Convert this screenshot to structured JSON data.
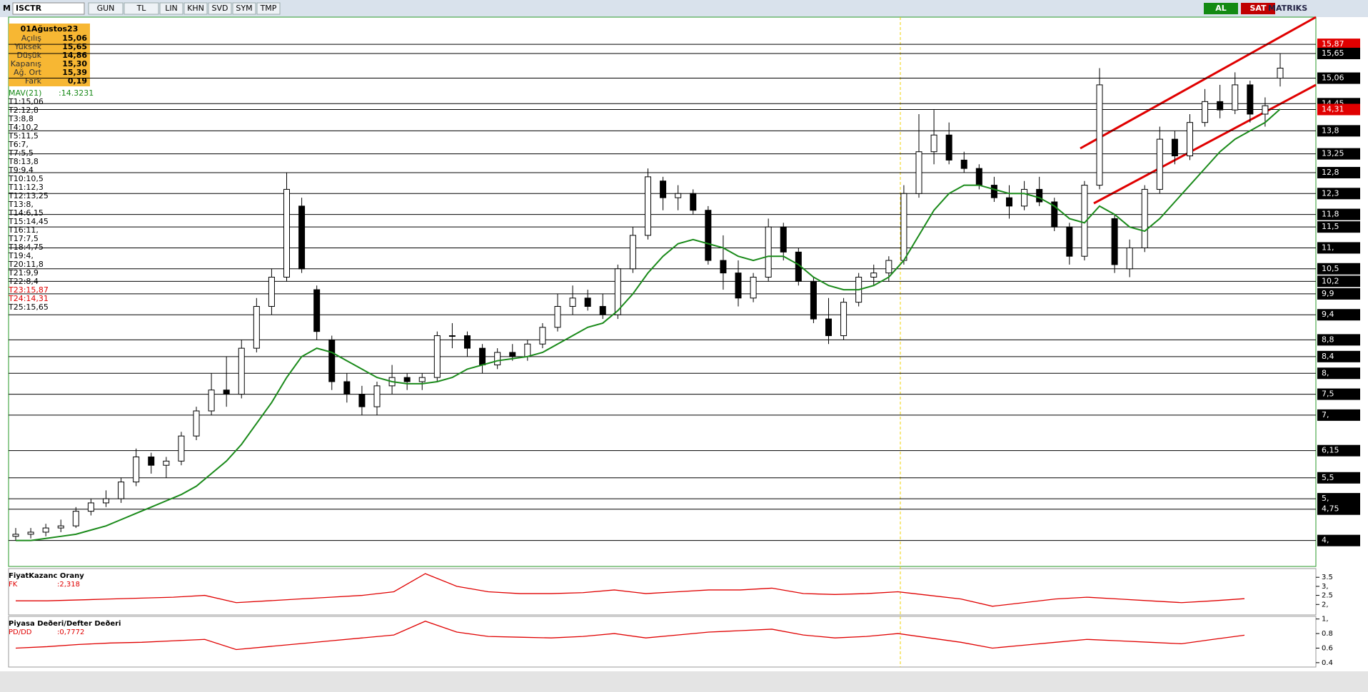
{
  "toolbar": {
    "logo": "M",
    "symbol": "ISCTR",
    "buttons": [
      "GUN",
      "TL",
      "LIN",
      "KHN",
      "SVD",
      "SYM",
      "TMP"
    ],
    "right_buttons": [
      "AL",
      "SAT"
    ],
    "brand": "MATRIKS"
  },
  "info_box": {
    "date": "01Ağustos23",
    "rows": [
      [
        "Açılış",
        "15,06"
      ],
      [
        "Yüksek",
        "15,65"
      ],
      [
        "Düşük",
        "14,86"
      ],
      [
        "Kapanış",
        "15,30"
      ],
      [
        "Ağ. Ort",
        "15,39"
      ],
      [
        "Fark",
        "0,19"
      ]
    ]
  },
  "chart_data": [
    {
      "type": "candlestick",
      "candles": [
        [
          4.1,
          4.3,
          4.0,
          4.15
        ],
        [
          4.15,
          4.3,
          4.05,
          4.2
        ],
        [
          4.2,
          4.4,
          4.1,
          4.3
        ],
        [
          4.3,
          4.5,
          4.2,
          4.35
        ],
        [
          4.35,
          4.8,
          4.3,
          4.7
        ],
        [
          4.7,
          5.0,
          4.6,
          4.9
        ],
        [
          4.9,
          5.2,
          4.8,
          5.0
        ],
        [
          5.0,
          5.5,
          4.9,
          5.4
        ],
        [
          5.4,
          6.2,
          5.3,
          6.0
        ],
        [
          6.0,
          6.1,
          5.6,
          5.8
        ],
        [
          5.8,
          6.0,
          5.5,
          5.9
        ],
        [
          5.9,
          6.6,
          5.8,
          6.5
        ],
        [
          6.5,
          7.2,
          6.4,
          7.1
        ],
        [
          7.1,
          8.0,
          7.0,
          7.6
        ],
        [
          7.6,
          8.4,
          7.2,
          7.5
        ],
        [
          7.5,
          8.8,
          7.4,
          8.6
        ],
        [
          8.6,
          9.8,
          8.5,
          9.6
        ],
        [
          9.6,
          10.5,
          9.4,
          10.3
        ],
        [
          10.3,
          12.8,
          10.2,
          12.4
        ],
        [
          12.0,
          12.2,
          10.4,
          10.5
        ],
        [
          10.0,
          10.1,
          8.8,
          9.0
        ],
        [
          8.8,
          8.9,
          7.6,
          7.8
        ],
        [
          7.8,
          8.0,
          7.3,
          7.5
        ],
        [
          7.5,
          7.7,
          7.0,
          7.2
        ],
        [
          7.2,
          7.8,
          7.0,
          7.7
        ],
        [
          7.7,
          8.2,
          7.5,
          7.9
        ],
        [
          7.9,
          8.0,
          7.6,
          7.8
        ],
        [
          7.8,
          8.0,
          7.6,
          7.9
        ],
        [
          7.9,
          9.0,
          7.8,
          8.9
        ],
        [
          8.9,
          9.2,
          8.6,
          8.9
        ],
        [
          8.9,
          9.0,
          8.4,
          8.6
        ],
        [
          8.6,
          8.7,
          8.0,
          8.2
        ],
        [
          8.2,
          8.6,
          8.1,
          8.5
        ],
        [
          8.5,
          8.7,
          8.3,
          8.4
        ],
        [
          8.4,
          8.8,
          8.3,
          8.7
        ],
        [
          8.7,
          9.2,
          8.6,
          9.1
        ],
        [
          9.1,
          9.9,
          9.0,
          9.6
        ],
        [
          9.6,
          10.1,
          9.4,
          9.8
        ],
        [
          9.8,
          10.0,
          9.5,
          9.6
        ],
        [
          9.6,
          9.9,
          9.3,
          9.4
        ],
        [
          9.4,
          10.6,
          9.3,
          10.5
        ],
        [
          10.5,
          11.5,
          10.4,
          11.3
        ],
        [
          11.3,
          12.9,
          11.2,
          12.7
        ],
        [
          12.6,
          12.7,
          11.9,
          12.2
        ],
        [
          12.2,
          12.5,
          11.9,
          12.3
        ],
        [
          12.3,
          12.4,
          11.8,
          11.9
        ],
        [
          11.9,
          12.0,
          10.6,
          10.7
        ],
        [
          10.7,
          11.3,
          10.0,
          10.4
        ],
        [
          10.4,
          10.7,
          9.6,
          9.8
        ],
        [
          9.8,
          10.4,
          9.7,
          10.3
        ],
        [
          10.3,
          11.7,
          10.2,
          11.5
        ],
        [
          11.5,
          11.6,
          10.7,
          10.9
        ],
        [
          10.9,
          11.0,
          10.1,
          10.2
        ],
        [
          10.2,
          10.3,
          9.2,
          9.3
        ],
        [
          9.3,
          9.8,
          8.7,
          8.9
        ],
        [
          8.9,
          9.8,
          8.8,
          9.7
        ],
        [
          9.7,
          10.4,
          9.6,
          10.3
        ],
        [
          10.3,
          10.6,
          10.1,
          10.4
        ],
        [
          10.4,
          10.8,
          10.2,
          10.7
        ],
        [
          10.7,
          12.5,
          10.6,
          12.3
        ],
        [
          12.3,
          14.2,
          12.2,
          13.3
        ],
        [
          13.3,
          14.3,
          13.0,
          13.7
        ],
        [
          13.7,
          14.0,
          13.0,
          13.1
        ],
        [
          13.1,
          13.3,
          12.8,
          12.9
        ],
        [
          12.9,
          13.0,
          12.4,
          12.5
        ],
        [
          12.5,
          12.7,
          12.1,
          12.2
        ],
        [
          12.2,
          12.5,
          11.7,
          12.0
        ],
        [
          12.0,
          12.6,
          11.9,
          12.4
        ],
        [
          12.4,
          12.7,
          12.0,
          12.1
        ],
        [
          12.1,
          12.2,
          11.4,
          11.5
        ],
        [
          11.5,
          11.6,
          10.6,
          10.8
        ],
        [
          10.8,
          12.6,
          10.7,
          12.5
        ],
        [
          12.5,
          15.3,
          12.4,
          14.9
        ],
        [
          11.7,
          11.8,
          10.4,
          10.6
        ],
        [
          10.5,
          11.2,
          10.3,
          11.0
        ],
        [
          11.0,
          12.5,
          10.9,
          12.4
        ],
        [
          12.4,
          13.9,
          12.3,
          13.6
        ],
        [
          13.6,
          13.8,
          13.0,
          13.2
        ],
        [
          13.2,
          14.2,
          13.1,
          14.0
        ],
        [
          14.0,
          14.8,
          13.9,
          14.5
        ],
        [
          14.5,
          14.9,
          14.1,
          14.3
        ],
        [
          14.3,
          15.2,
          14.2,
          14.9
        ],
        [
          14.9,
          15.0,
          14.0,
          14.2
        ],
        [
          14.2,
          14.6,
          13.9,
          14.4
        ],
        [
          15.06,
          15.65,
          14.86,
          15.3
        ]
      ],
      "series": [
        {
          "name": "MAV(21)",
          "current": ":14.3231",
          "color": "#1a8a1a",
          "values": [
            4.0,
            4.0,
            4.05,
            4.1,
            4.15,
            4.25,
            4.35,
            4.5,
            4.65,
            4.8,
            4.95,
            5.1,
            5.3,
            5.6,
            5.9,
            6.3,
            6.8,
            7.3,
            7.9,
            8.4,
            8.6,
            8.5,
            8.3,
            8.1,
            7.9,
            7.8,
            7.75,
            7.75,
            7.8,
            7.9,
            8.1,
            8.2,
            8.3,
            8.35,
            8.4,
            8.5,
            8.7,
            8.9,
            9.1,
            9.2,
            9.5,
            9.9,
            10.4,
            10.8,
            11.1,
            11.2,
            11.1,
            11.0,
            10.8,
            10.7,
            10.8,
            10.8,
            10.6,
            10.3,
            10.1,
            10.0,
            10.0,
            10.1,
            10.3,
            10.7,
            11.3,
            11.9,
            12.3,
            12.5,
            12.5,
            12.4,
            12.3,
            12.3,
            12.2,
            12.0,
            11.7,
            11.6,
            12.0,
            11.8,
            11.5,
            11.4,
            11.7,
            12.1,
            12.5,
            12.9,
            13.3,
            13.6,
            13.8,
            14.0,
            14.32
          ]
        }
      ],
      "levels": [
        "T1:15,06",
        "T2:12,8",
        "T3:8,8",
        "T4:10,2",
        "T5:11,5",
        "T6:7,",
        "T7:5,5",
        "T8:13,8",
        "T9:9,4",
        "T10:10,5",
        "T11:12,3",
        "T12:13,25",
        "T13:8,",
        "T14:6,15",
        "T15:14,45",
        "T16:11,",
        "T17:7,5",
        "T18:4,75",
        "T19:4,",
        "T20:11,8",
        "T21:9,9",
        "T22:8,4",
        {
          "text": "T23:15,87",
          "color": "#e00000"
        },
        {
          "text": "T24:14,31",
          "color": "#e00000"
        },
        "T25:15,65"
      ],
      "ylim": [
        3.38,
        16.52
      ],
      "yticks": [
        {
          "value": 15.87,
          "label": "15,87",
          "color": "#e00000"
        },
        {
          "value": 15.65,
          "label": "15,65"
        },
        {
          "value": 15.06,
          "label": "15,06"
        },
        {
          "value": 14.45,
          "label": "14,45"
        },
        {
          "value": 14.31,
          "label": "14,31",
          "color": "#e00000"
        },
        {
          "value": 13.8,
          "label": "13,8"
        },
        {
          "value": 13.25,
          "label": "13,25"
        },
        {
          "value": 12.8,
          "label": "12,8"
        },
        {
          "value": 12.3,
          "label": "12,3"
        },
        {
          "value": 11.8,
          "label": "11,8"
        },
        {
          "value": 11.5,
          "label": "11,5"
        },
        {
          "value": 11,
          "label": "11,"
        },
        {
          "value": 10.5,
          "label": "10,5"
        },
        {
          "value": 10.2,
          "label": "10,2"
        },
        {
          "value": 9.9,
          "label": "9,9"
        },
        {
          "value": 9.4,
          "label": "9,4"
        },
        {
          "value": 8.8,
          "label": "8,8"
        },
        {
          "value": 8.4,
          "label": "8,4"
        },
        {
          "value": 8,
          "label": "8,"
        },
        {
          "value": 7.5,
          "label": "7,5"
        },
        {
          "value": 7,
          "label": "7,"
        },
        {
          "value": 6.15,
          "label": "6,15"
        },
        {
          "value": 5.5,
          "label": "5,5"
        },
        {
          "value": 5,
          "label": "5,"
        },
        {
          "value": 4.75,
          "label": "4,75"
        },
        {
          "value": 4,
          "label": "4,"
        }
      ],
      "grid": true
    },
    {
      "type": "line",
      "title": "FiyatKazanc Orany",
      "series": [
        {
          "name": "FK",
          "current": ":2,318",
          "color": "#e00000",
          "values": [
            2.2,
            2.2,
            2.25,
            2.3,
            2.35,
            2.4,
            2.5,
            2.1,
            2.2,
            2.3,
            2.4,
            2.5,
            2.7,
            3.7,
            3.0,
            2.7,
            2.6,
            2.6,
            2.65,
            2.8,
            2.6,
            2.7,
            2.8,
            2.8,
            2.9,
            2.6,
            2.55,
            2.6,
            2.7,
            2.5,
            2.3,
            1.9,
            2.1,
            2.3,
            2.4,
            2.3,
            2.2,
            2.1,
            2.2,
            2.318
          ]
        }
      ],
      "ylim": [
        1.42,
        3.98
      ],
      "yticks": [
        3.5,
        {
          "value": 3,
          "label": "3,"
        },
        2.5,
        {
          "value": 2,
          "label": "2,"
        }
      ]
    },
    {
      "type": "line",
      "title": "Piyasa Deðeri/Defter Deðeri",
      "series": [
        {
          "name": "PD/DD",
          "current": ":0,7772",
          "color": "#e00000",
          "values": [
            0.6,
            0.62,
            0.65,
            0.67,
            0.68,
            0.7,
            0.72,
            0.58,
            0.62,
            0.66,
            0.7,
            0.74,
            0.78,
            0.97,
            0.82,
            0.76,
            0.75,
            0.74,
            0.76,
            0.8,
            0.74,
            0.78,
            0.82,
            0.84,
            0.86,
            0.78,
            0.74,
            0.76,
            0.8,
            0.74,
            0.68,
            0.6,
            0.64,
            0.68,
            0.72,
            0.7,
            0.68,
            0.66,
            0.72,
            0.7772
          ]
        }
      ],
      "ylim": [
        0.34,
        1.036
      ],
      "yticks": [
        {
          "value": 1,
          "label": "1,"
        },
        0.8,
        0.6,
        0.4
      ]
    }
  ]
}
